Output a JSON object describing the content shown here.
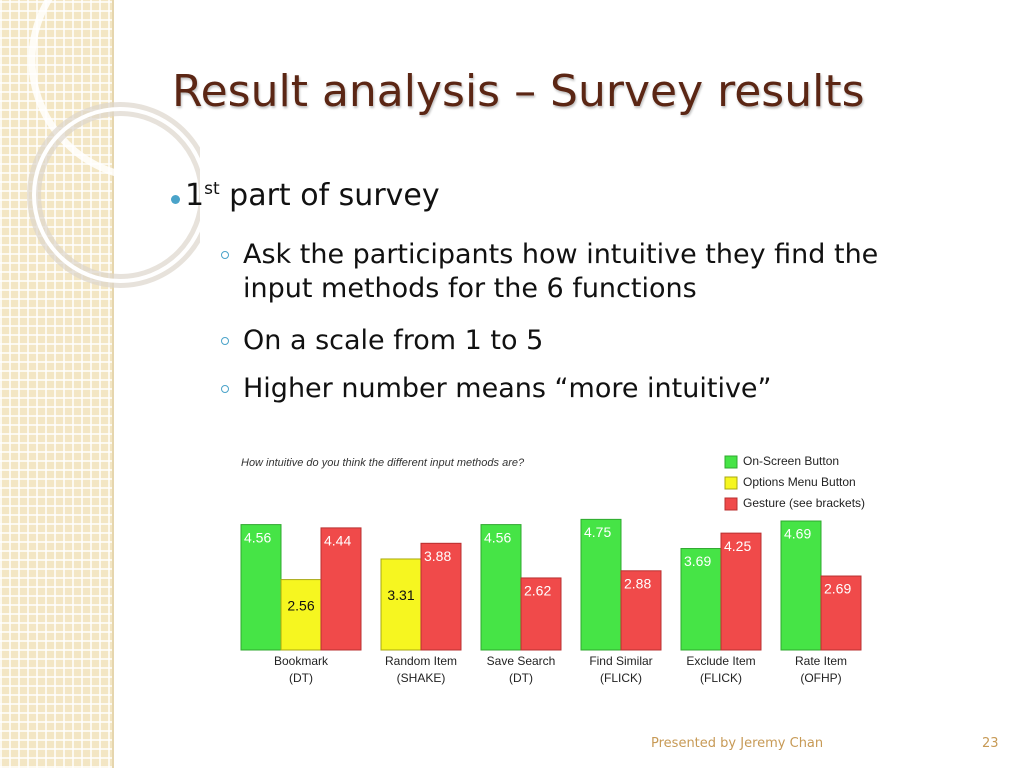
{
  "title": "Result analysis – Survey results",
  "bullets": [
    {
      "text": "1",
      "sup": "st",
      "rest": " part of survey",
      "subs": [
        "Ask the participants how intuitive they find the input methods for the 6 functions",
        "On a scale from 1 to 5",
        "Higher number means “more intuitive”"
      ]
    }
  ],
  "chart_data": {
    "type": "bar",
    "title": "How intuitive do you think the different input methods are?",
    "categories": [
      "Bookmark",
      "Random Item",
      "Save Search",
      "Find Similar",
      "Exclude Item",
      "Rate Item"
    ],
    "subcategories": [
      "(DT)",
      "(SHAKE)",
      "(DT)",
      "(FLICK)",
      "(FLICK)",
      "(OFHP)"
    ],
    "series": [
      {
        "name": "On-Screen Button",
        "color": "#46e446",
        "values": [
          4.56,
          null,
          4.56,
          4.75,
          3.69,
          4.69
        ]
      },
      {
        "name": "Options Menu Button",
        "color": "#f6f620",
        "values": [
          2.56,
          3.31,
          null,
          null,
          null,
          null
        ]
      },
      {
        "name": "Gesture (see brackets)",
        "color": "#f04a4a",
        "values": [
          4.44,
          3.88,
          2.62,
          2.88,
          4.25,
          2.69
        ]
      }
    ]
  },
  "footer": {
    "presenter": "Presented by Jeremy Chan",
    "page": 23
  }
}
